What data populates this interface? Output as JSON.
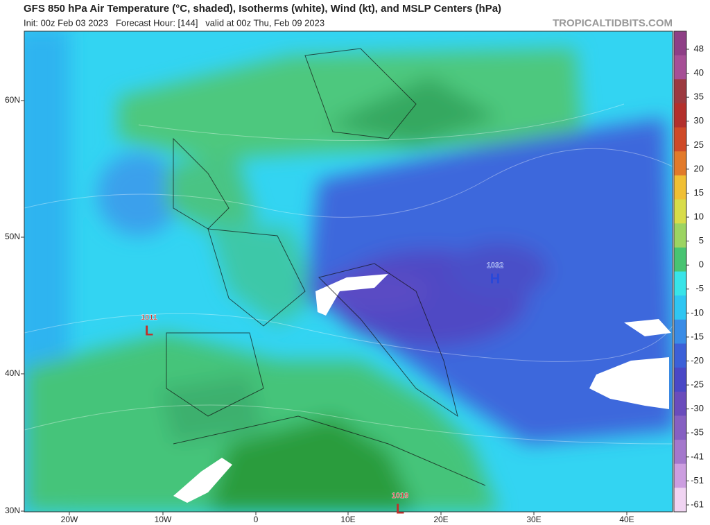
{
  "header": {
    "title": "GFS 850 hPa Air Temperature (°C, shaded), Isotherms (white), Wind (kt), and MSLP Centers (hPa)",
    "subtitle": "Init: 00z Feb 03 2023   Forecast Hour: [144]   valid at 00z Thu, Feb 09 2023",
    "watermark": "TROPICALTIDBITS.COM"
  },
  "map": {
    "latitude_labels": [
      "60N",
      "50N",
      "40N",
      "30N"
    ],
    "longitude_labels": [
      "20W",
      "10W",
      "0",
      "10E",
      "20E",
      "30E",
      "40E"
    ],
    "pressure_centers": [
      {
        "value": "1011",
        "symbol": "L"
      },
      {
        "value": "1032",
        "symbol": "H"
      },
      {
        "value": "1019",
        "symbol": "L"
      }
    ]
  },
  "colorbar": {
    "labels": [
      48,
      40,
      35,
      30,
      25,
      20,
      15,
      10,
      5,
      0,
      -5,
      -10,
      -15,
      -20,
      -25,
      -30,
      -35,
      -41,
      -51,
      -61
    ],
    "colors": [
      "#8e3f86",
      "#a64f96",
      "#9c3a40",
      "#b3302c",
      "#cf4a28",
      "#e27a2a",
      "#f0bf34",
      "#d8dc4a",
      "#9cd462",
      "#48c472",
      "#38e4e8",
      "#2fc6f2",
      "#3a8ce6",
      "#3c60d8",
      "#4a48c6",
      "#6a4cbc",
      "#8660c2",
      "#a478cc",
      "#cc9ee0",
      "#f0d4f2"
    ]
  }
}
